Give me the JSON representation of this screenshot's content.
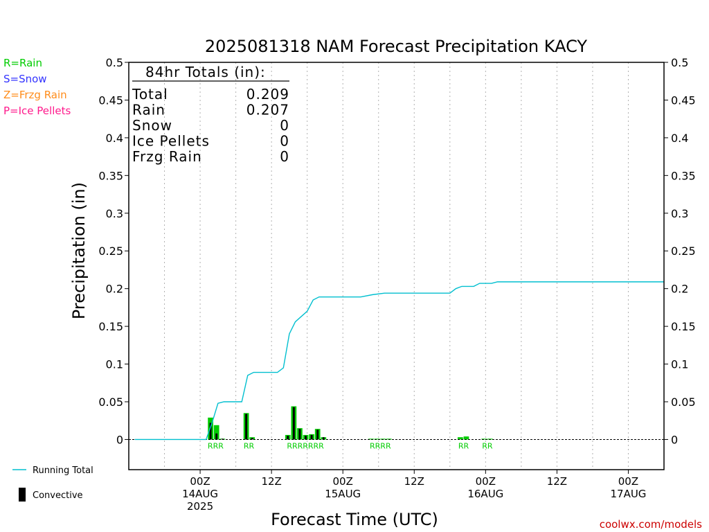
{
  "chart_data": {
    "type": "bar",
    "title": "2025081318 NAM Forecast Precipitation KACY",
    "xlabel": "Forecast Time (UTC)",
    "ylabel": "Precipitation (in)",
    "ylim": [
      -0.04,
      0.5
    ],
    "x_unit": "forecast hour",
    "xlim": [
      -6,
      84
    ],
    "yticks": [
      "0.5",
      "0.45",
      "0.4",
      "0.35",
      "0.3",
      "0.25",
      "0.2",
      "0.15",
      "0.1",
      "0.05",
      "0"
    ],
    "xticks": [
      {
        "x": 6,
        "lines": [
          "00Z",
          "14AUG",
          "2025"
        ]
      },
      {
        "x": 18,
        "lines": [
          "12Z"
        ]
      },
      {
        "x": 30,
        "lines": [
          "00Z",
          "15AUG"
        ]
      },
      {
        "x": 42,
        "lines": [
          "12Z"
        ]
      },
      {
        "x": 54,
        "lines": [
          "00Z",
          "16AUG"
        ]
      },
      {
        "x": 66,
        "lines": [
          "12Z"
        ]
      },
      {
        "x": 78,
        "lines": [
          "00Z",
          "17AUG"
        ]
      }
    ],
    "grid": "vertical dotted",
    "legend_left": [
      {
        "text": "R=Rain",
        "color": "#00cc00"
      },
      {
        "text": "S=Snow",
        "color": "#3333ff"
      },
      {
        "text": "Z=Frzg Rain",
        "color": "#ff8c1a"
      },
      {
        "text": "P=Ice Pellets",
        "color": "#ff1a8c"
      }
    ],
    "legend_bottom": [
      {
        "text": "Running Total",
        "symbol": "line",
        "color": "#00bfcf"
      },
      {
        "text": "Convective",
        "symbol": "bar",
        "color": "#000000"
      }
    ],
    "totals_box": {
      "header": "84hr Totals (in):",
      "rows": [
        {
          "label": "Total",
          "value": "0.209"
        },
        {
          "label": "Rain",
          "value": "0.207"
        },
        {
          "label": "Snow",
          "value": "0"
        },
        {
          "label": "Ice Pellets",
          "value": "0"
        },
        {
          "label": "Frzg Rain",
          "value": "0"
        }
      ]
    },
    "series": [
      {
        "name": "Running Total",
        "kind": "line",
        "color": "#00bfcf",
        "points": [
          [
            -5,
            0
          ],
          [
            7,
            0
          ],
          [
            8,
            0.022
          ],
          [
            9,
            0.048
          ],
          [
            10,
            0.05
          ],
          [
            13,
            0.05
          ],
          [
            14,
            0.085
          ],
          [
            15,
            0.089
          ],
          [
            19,
            0.089
          ],
          [
            20,
            0.095
          ],
          [
            21,
            0.14
          ],
          [
            22,
            0.156
          ],
          [
            24,
            0.17
          ],
          [
            25,
            0.185
          ],
          [
            26,
            0.189
          ],
          [
            33,
            0.189
          ],
          [
            35,
            0.192
          ],
          [
            37,
            0.194
          ],
          [
            48,
            0.194
          ],
          [
            49,
            0.2
          ],
          [
            50,
            0.203
          ],
          [
            52,
            0.203
          ],
          [
            53,
            0.207
          ],
          [
            55,
            0.207
          ],
          [
            56,
            0.209
          ],
          [
            84,
            0.209
          ]
        ]
      },
      {
        "name": "Rain",
        "kind": "bar",
        "color": "#00cc00",
        "x": [
          7.75,
          8.75,
          9.75,
          13.75,
          14.75,
          20.75,
          21.75,
          22.75,
          23.75,
          24.75,
          25.75,
          26.75,
          34.75,
          35.75,
          36.75,
          37.75,
          49.75,
          50.75,
          53.75,
          54.75
        ],
        "values": [
          0.029,
          0.019,
          0.001,
          0.035,
          0.003,
          0.006,
          0.044,
          0.015,
          0.006,
          0.007,
          0.014,
          0.003,
          0.001,
          0.001,
          0.001,
          0.001,
          0.003,
          0.004,
          0.001,
          0.001
        ]
      },
      {
        "name": "Convective",
        "kind": "bar",
        "color": "#000000",
        "x": [
          7.75,
          8.75,
          9.75,
          13.75,
          14.75,
          20.75,
          21.75,
          22.75,
          23.75,
          24.75,
          25.75,
          26.75
        ],
        "values": [
          0.022,
          0.008,
          0.001,
          0.034,
          0.002,
          0.005,
          0.043,
          0.014,
          0.005,
          0.006,
          0.013,
          0.003
        ]
      }
    ],
    "type_codes": [
      {
        "text": "RRR",
        "x": 8.6
      },
      {
        "text": "RR",
        "x": 14.2
      },
      {
        "text": "RRRRRRR",
        "x": 23.7
      },
      {
        "text": "RRRR",
        "x": 36.3
      },
      {
        "text": "RR",
        "x": 50.3
      },
      {
        "text": "RR",
        "x": 54.3
      }
    ],
    "credit": "coolwx.com/models"
  }
}
